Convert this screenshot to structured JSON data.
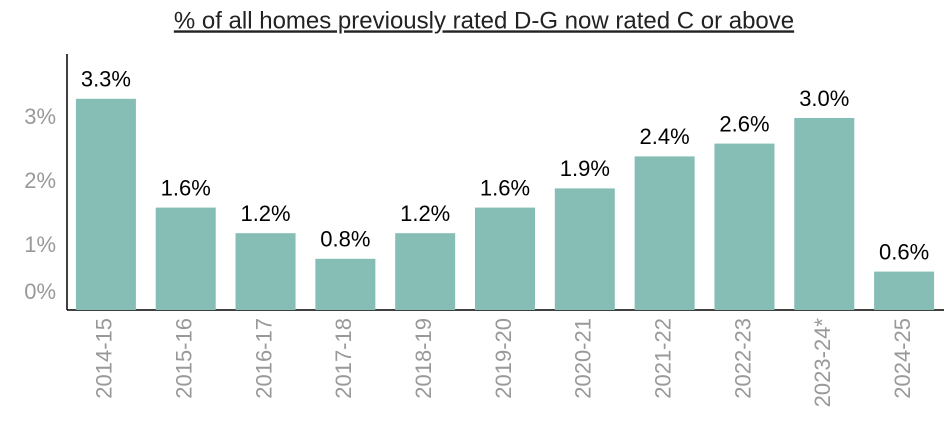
{
  "chart_data": {
    "type": "bar",
    "title": "% of all homes previously rated D-G now rated C or above",
    "categories": [
      "2014-15",
      "2015-16",
      "2016-17",
      "2017-18",
      "2018-19",
      "2019-20",
      "2020-21",
      "2021-22",
      "2022-23",
      "2023-24*",
      "2024-25"
    ],
    "values": [
      3.3,
      1.6,
      1.2,
      0.8,
      1.2,
      1.6,
      1.9,
      2.4,
      2.6,
      3.0,
      0.6
    ],
    "value_labels": [
      "3.3%",
      "1.6%",
      "1.2%",
      "0.8%",
      "1.2%",
      "1.6%",
      "1.9%",
      "2.4%",
      "2.6%",
      "3.0%",
      "0.6%"
    ],
    "color": "#86bdb5",
    "ylim": [
      0,
      4
    ],
    "yticks": [
      {
        "value": 0,
        "label": "0%"
      },
      {
        "value": 1,
        "label": "1%"
      },
      {
        "value": 2,
        "label": "2%"
      },
      {
        "value": 3,
        "label": "3%"
      }
    ],
    "grid": false
  }
}
